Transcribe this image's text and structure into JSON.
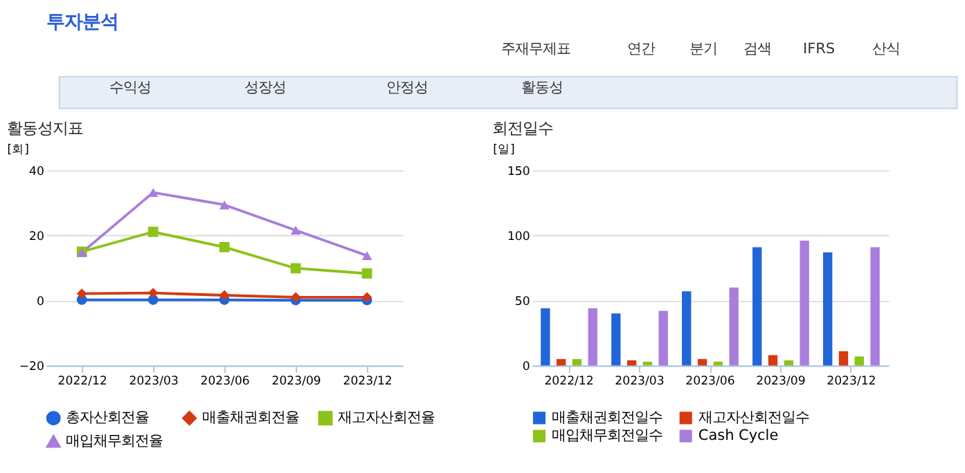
{
  "chart_data": [
    {
      "type": "other",
      "title": "투자분석",
      "annotations": [
        "주재무제표",
        "연간",
        "분기",
        "검색",
        "IFRS",
        "산식",
        "수익성",
        "성장성",
        "안정성",
        "활동성"
      ]
    },
    {
      "type": "line",
      "title": "활동성지표",
      "ylabel": "[회]",
      "categories": [
        "2022/12",
        "2023/03",
        "2023/06",
        "2023/09",
        "2023/12"
      ],
      "ylim": [
        -20,
        40
      ],
      "yticks": [
        -20,
        0,
        20,
        40
      ],
      "grid": "y",
      "legend": "bottom",
      "line_style": "solid",
      "series": [
        {
          "name": "총자산회전율",
          "color": "#2066d8",
          "marker": "circle",
          "values": [
            0.2,
            0.2,
            0.2,
            0.1,
            0.1
          ]
        },
        {
          "name": "매출채권회전율",
          "color": "#d53a10",
          "marker": "diamond",
          "values": [
            2.1,
            2.3,
            1.6,
            1.0,
            1.0
          ]
        },
        {
          "name": "재고자산회전율",
          "color": "#8cc21a",
          "marker": "square",
          "values": [
            15.0,
            21.1,
            16.4,
            9.9,
            8.3
          ]
        },
        {
          "name": "매입채무회전율",
          "color": "#a87ddb",
          "marker": "triangle",
          "values": [
            14.7,
            33.2,
            29.4,
            21.6,
            13.8
          ]
        }
      ]
    },
    {
      "type": "bar",
      "title": "회전일수",
      "ylabel": "[일]",
      "categories": [
        "2022/12",
        "2023/03",
        "2023/06",
        "2023/09",
        "2023/12"
      ],
      "ylim": [
        0,
        150
      ],
      "yticks": [
        0,
        50,
        100,
        150
      ],
      "grid": "y",
      "legend": "bottom",
      "series": [
        {
          "name": "매출채권회전일수",
          "color": "#2066d8",
          "values": [
            44,
            40,
            57,
            91,
            87
          ]
        },
        {
          "name": "재고자산회전일수",
          "color": "#d53a10",
          "values": [
            5,
            4,
            5,
            8,
            11
          ]
        },
        {
          "name": "매입채무회전일수",
          "color": "#8cc21a",
          "values": [
            5,
            3,
            3,
            4,
            7
          ]
        },
        {
          "name": "Cash Cycle",
          "color": "#a87ddb",
          "values": [
            44,
            42,
            60,
            96,
            91
          ]
        }
      ]
    }
  ]
}
